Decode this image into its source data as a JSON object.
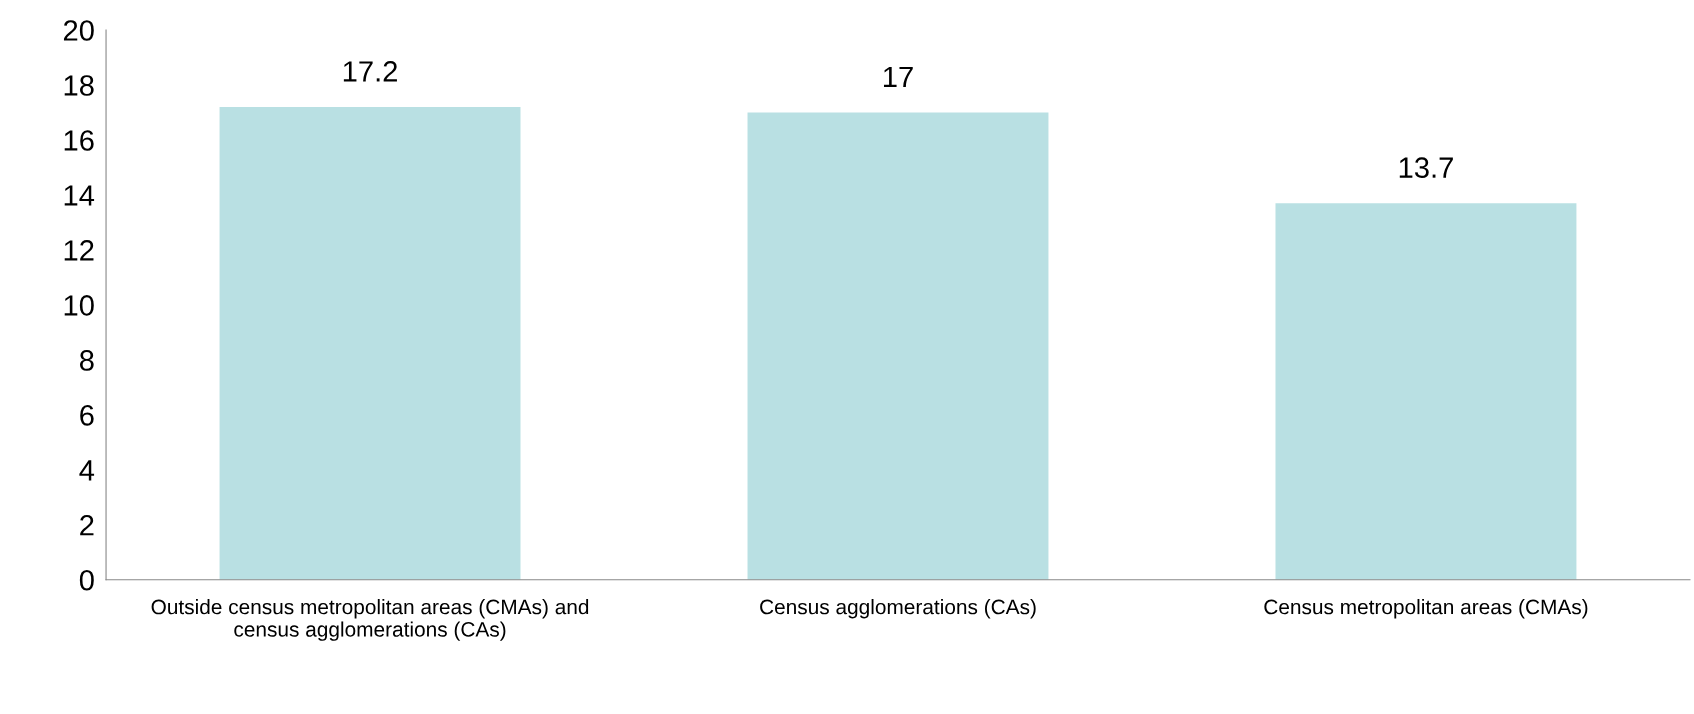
{
  "chart_data": {
    "type": "bar",
    "categories": [
      "Outside census metropolitan areas (CMAs) and census agglomerations (CAs)",
      "Census agglomerations (CAs)",
      "Census metropolitan areas (CMAs)"
    ],
    "values": [
      17.2,
      17,
      13.7
    ],
    "color": "#b9e0e3",
    "ylim": [
      0,
      20
    ],
    "yticks": [
      0,
      2,
      4,
      6,
      8,
      10,
      12,
      14,
      16,
      18,
      20
    ],
    "data_labels": true,
    "grid": false,
    "legend": false
  }
}
